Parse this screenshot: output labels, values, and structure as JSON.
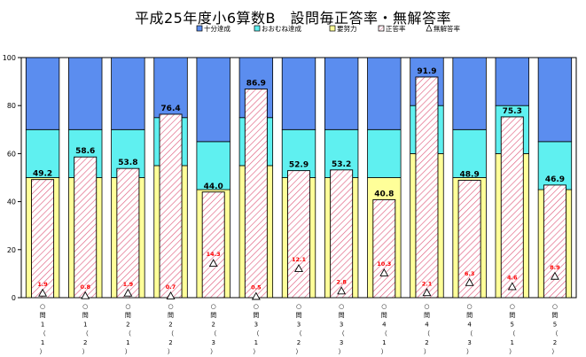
{
  "chart_data": {
    "type": "bar",
    "title": "平成25年度小6算数B　設問毎正答率・無解答率",
    "categories": [
      [
        "○",
        "問",
        "1",
        "（",
        "1",
        "）"
      ],
      [
        "○",
        "問",
        "1",
        "（",
        "2",
        "）"
      ],
      [
        "○",
        "問",
        "2",
        "（",
        "1",
        "）"
      ],
      [
        "○",
        "問",
        "2",
        "（",
        "2",
        "）"
      ],
      [
        "○",
        "問",
        "2",
        "（",
        "3",
        "）"
      ],
      [
        "○",
        "問",
        "3",
        "（",
        "1",
        "）"
      ],
      [
        "○",
        "問",
        "3",
        "（",
        "2",
        "）"
      ],
      [
        "○",
        "問",
        "3",
        "（",
        "3",
        "）"
      ],
      [
        "○",
        "問",
        "4",
        "（",
        "1",
        "）"
      ],
      [
        "○",
        "問",
        "4",
        "（",
        "2",
        "）"
      ],
      [
        "○",
        "問",
        "4",
        "（",
        "3",
        "）"
      ],
      [
        "○",
        "問",
        "5",
        "（",
        "1",
        "）"
      ],
      [
        "○",
        "問",
        "5",
        "（",
        "2",
        "）"
      ]
    ],
    "ylim": [
      0,
      100
    ],
    "yticks": [
      0,
      20,
      40,
      60,
      80,
      100
    ],
    "legend_position": "top-right",
    "series": [
      {
        "name": "十分達成",
        "color": "#5b8def"
      },
      {
        "name": "おおむね達成",
        "color": "#5ff0f0"
      },
      {
        "name": "要努力",
        "color": "#ffff99"
      },
      {
        "name": "正答率",
        "color": "#ffffff",
        "pattern_color": "#e06080"
      },
      {
        "name": "無解答率",
        "color": "#ffffff",
        "marker": "triangle"
      }
    ],
    "band_thresholds": {
      "yodoryoku_upper": [
        50,
        50,
        50,
        55,
        45,
        55,
        50,
        50,
        50,
        60,
        50,
        60,
        45
      ],
      "oomune_upper": [
        70,
        70,
        70,
        75,
        65,
        75,
        70,
        70,
        70,
        80,
        70,
        80,
        65
      ]
    },
    "correct_rate": [
      49.2,
      58.6,
      53.8,
      76.4,
      44.0,
      86.9,
      52.9,
      53.2,
      40.8,
      91.9,
      48.9,
      75.3,
      46.9
    ],
    "no_answer_rate": [
      1.9,
      0.8,
      1.9,
      0.7,
      14.3,
      0.5,
      12.1,
      2.8,
      10.3,
      2.1,
      6.3,
      4.6,
      8.9
    ],
    "correct_labels": [
      "49.2",
      "58.6",
      "53.8",
      "76.4",
      "44.0",
      "86.9",
      "52.9",
      "53.2",
      "40.8",
      "91.9",
      "48.9",
      "75.3",
      "46.9"
    ],
    "no_answer_labels": [
      "1.9",
      "0.8",
      "1.9",
      "0.7",
      "14.3",
      "0.5",
      "12.1",
      "2.8",
      "10.3",
      "2.1",
      "6.3",
      "4.6",
      "8.9"
    ]
  }
}
